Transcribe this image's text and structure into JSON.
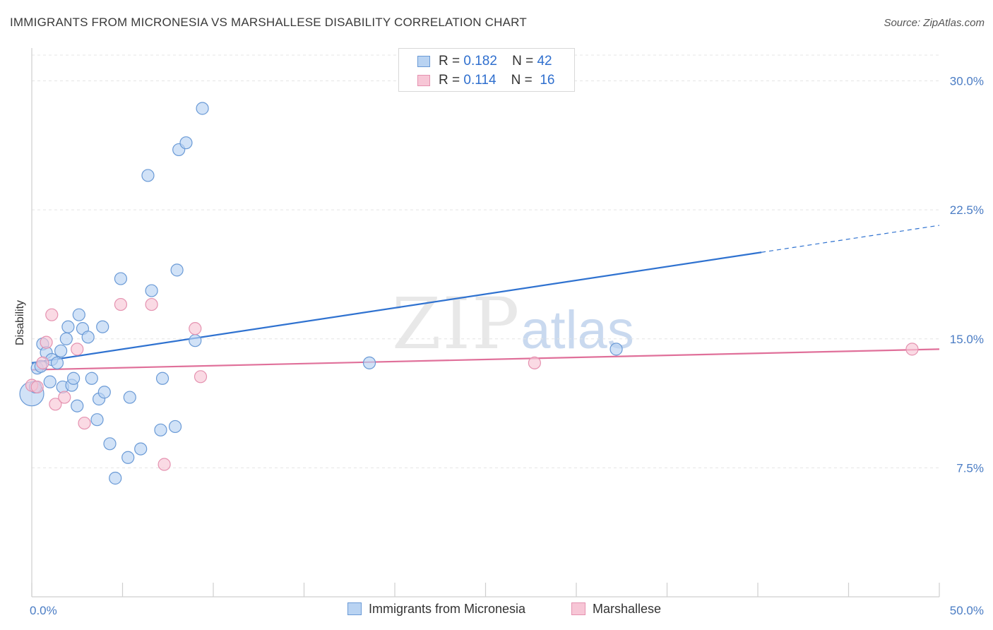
{
  "header": {
    "title": "IMMIGRANTS FROM MICRONESIA VS MARSHALLESE DISABILITY CORRELATION CHART",
    "source": "Source: ZipAtlas.com"
  },
  "watermark": {
    "part1": "ZIP",
    "part2": "atlas"
  },
  "legend": {
    "rows": [
      {
        "r_label": "R =",
        "r_value": "0.182",
        "n_label": "N =",
        "n_value": "42"
      },
      {
        "r_label": "R =",
        "r_value": "0.114",
        "n_label": "N =",
        "n_value": "16"
      }
    ]
  },
  "colors": {
    "blue_fill": "#b9d3f2",
    "blue_stroke": "#6a9ad6",
    "blue_line": "#2f72d0",
    "pink_fill": "#f7c6d6",
    "pink_stroke": "#e592b0",
    "pink_line": "#e0709a",
    "grid": "#e4e4e4",
    "axis_text": "#4a7cc4"
  },
  "chart_data": {
    "type": "scatter",
    "title": "IMMIGRANTS FROM MICRONESIA VS MARSHALLESE DISABILITY CORRELATION CHART",
    "xlabel": "",
    "ylabel": "Disability",
    "xlim": [
      0,
      50
    ],
    "ylim": [
      0,
      31.5
    ],
    "x_ticks": [
      0,
      50
    ],
    "x_tick_labels": [
      "0.0%",
      "50.0%"
    ],
    "y_ticks": [
      7.5,
      15.0,
      22.5,
      30.0
    ],
    "y_tick_labels": [
      "7.5%",
      "15.0%",
      "22.5%",
      "30.0%"
    ],
    "grid": "horizontal dashed",
    "series": [
      {
        "name": "Immigrants from Micronesia",
        "color": "blue",
        "points": [
          [
            0.0,
            11.8
          ],
          [
            0.3,
            13.3
          ],
          [
            0.5,
            13.4
          ],
          [
            0.6,
            14.7
          ],
          [
            0.8,
            14.2
          ],
          [
            1.0,
            12.5
          ],
          [
            1.1,
            13.8
          ],
          [
            1.4,
            13.6
          ],
          [
            1.6,
            14.3
          ],
          [
            1.7,
            12.2
          ],
          [
            1.9,
            15.0
          ],
          [
            2.0,
            15.7
          ],
          [
            2.2,
            12.3
          ],
          [
            2.3,
            12.7
          ],
          [
            2.5,
            11.1
          ],
          [
            2.6,
            16.4
          ],
          [
            2.8,
            15.6
          ],
          [
            3.1,
            15.1
          ],
          [
            3.3,
            12.7
          ],
          [
            3.6,
            10.3
          ],
          [
            3.7,
            11.5
          ],
          [
            3.9,
            15.7
          ],
          [
            4.0,
            11.9
          ],
          [
            4.3,
            8.9
          ],
          [
            4.6,
            6.9
          ],
          [
            4.9,
            18.5
          ],
          [
            5.3,
            8.1
          ],
          [
            5.4,
            11.6
          ],
          [
            6.0,
            8.6
          ],
          [
            6.4,
            24.5
          ],
          [
            6.6,
            17.8
          ],
          [
            7.1,
            9.7
          ],
          [
            7.2,
            12.7
          ],
          [
            7.9,
            9.9
          ],
          [
            8.0,
            19.0
          ],
          [
            8.1,
            26.0
          ],
          [
            8.5,
            26.4
          ],
          [
            9.0,
            14.9
          ],
          [
            9.4,
            28.4
          ],
          [
            18.6,
            13.6
          ],
          [
            32.2,
            14.4
          ],
          [
            0.2,
            12.2
          ]
        ]
      },
      {
        "name": "Marshallese",
        "color": "pink",
        "points": [
          [
            0.0,
            12.3
          ],
          [
            0.3,
            12.2
          ],
          [
            0.8,
            14.8
          ],
          [
            1.1,
            16.4
          ],
          [
            1.3,
            11.2
          ],
          [
            1.8,
            11.6
          ],
          [
            2.5,
            14.4
          ],
          [
            2.9,
            10.1
          ],
          [
            4.9,
            17.0
          ],
          [
            6.6,
            17.0
          ],
          [
            7.3,
            7.7
          ],
          [
            9.0,
            15.6
          ],
          [
            9.3,
            12.8
          ],
          [
            27.7,
            13.6
          ],
          [
            48.5,
            14.4
          ],
          [
            0.6,
            13.6
          ]
        ]
      }
    ],
    "trend_lines": [
      {
        "series": "Immigrants from Micronesia",
        "x": [
          0,
          50
        ],
        "y": [
          13.6,
          21.6
        ],
        "solid_until_x": 40.2
      },
      {
        "series": "Marshallese",
        "x": [
          0,
          50
        ],
        "y": [
          13.2,
          14.4
        ]
      }
    ],
    "legend_position": "top-center"
  }
}
